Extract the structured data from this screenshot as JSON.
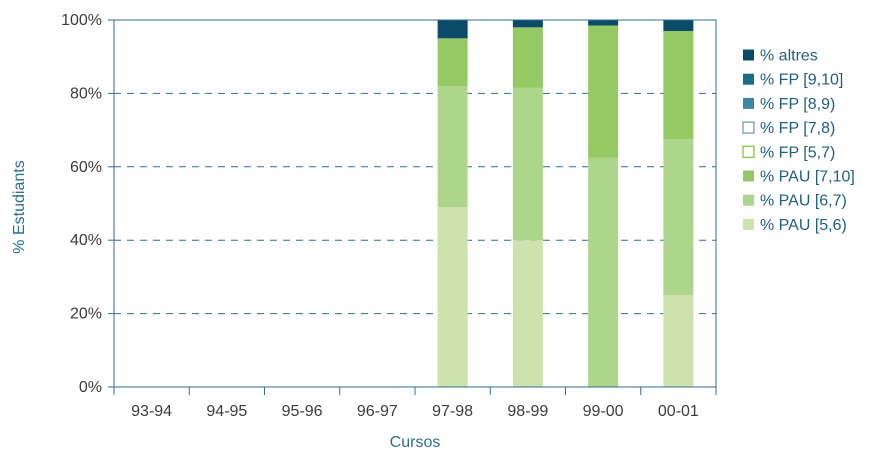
{
  "chart_data": {
    "type": "bar",
    "stacked": true,
    "title": "",
    "xlabel": "Cursos",
    "ylabel": "% Estudiants",
    "ylim": [
      0,
      100
    ],
    "yticks": [
      0,
      20,
      40,
      60,
      80,
      100
    ],
    "ytick_labels": [
      "0%",
      "20%",
      "40%",
      "60%",
      "80%",
      "100%"
    ],
    "grid": "horizontal dashed",
    "legend_position": "right",
    "categories": [
      "93-94",
      "94-95",
      "95-96",
      "96-97",
      "97-98",
      "98-99",
      "99-00",
      "00-01"
    ],
    "series": [
      {
        "name": "% PAU [5,6)",
        "color": "#cde2ad",
        "outline": false,
        "values": [
          0,
          0,
          0,
          0,
          49,
          40,
          0,
          25
        ]
      },
      {
        "name": "% PAU [6,7)",
        "color": "#add68a",
        "outline": false,
        "values": [
          0,
          0,
          0,
          0,
          33,
          41.5,
          62.5,
          42.5
        ]
      },
      {
        "name": "% PAU [7,10]",
        "color": "#94c963",
        "outline": false,
        "values": [
          0,
          0,
          0,
          0,
          13,
          16.5,
          36,
          29.5
        ]
      },
      {
        "name": "% FP [5,7)",
        "color": "#8cc63f",
        "outline": true,
        "values": [
          0,
          0,
          0,
          0,
          0,
          0,
          0,
          0
        ]
      },
      {
        "name": "% FP [7,8)",
        "color": "#7a9cad",
        "outline": true,
        "values": [
          0,
          0,
          0,
          0,
          0,
          0,
          0,
          0
        ]
      },
      {
        "name": "% FP [8,9)",
        "color": "#3d87a6",
        "outline": false,
        "values": [
          0,
          0,
          0,
          0,
          0,
          0,
          0,
          0
        ]
      },
      {
        "name": "% FP [9,10]",
        "color": "#1b6b8c",
        "outline": false,
        "values": [
          0,
          0,
          0,
          0,
          0,
          0,
          0,
          0
        ]
      },
      {
        "name": "% altres",
        "color": "#0b4b68",
        "outline": false,
        "values": [
          0,
          0,
          0,
          0,
          5,
          2,
          1.5,
          3
        ]
      }
    ]
  }
}
